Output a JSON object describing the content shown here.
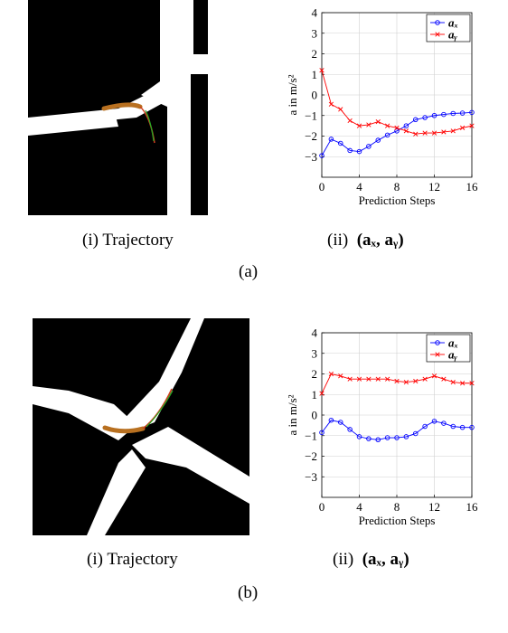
{
  "panels": [
    {
      "label": "(a)",
      "trajectory_caption": "(i)  Trajectory",
      "plot_caption_prefix": "(ii)",
      "plot_caption_math": "(aₓ, aᵧ)",
      "chart_data": {
        "type": "line",
        "xlabel": "Prediction Steps",
        "ylabel": "a in m/s²",
        "xlim": [
          0,
          16
        ],
        "ylim": [
          -4,
          4
        ],
        "xticks": [
          0,
          4,
          8,
          12,
          16
        ],
        "yticks": [
          -3,
          -2,
          -1,
          0,
          1,
          2,
          3,
          4
        ],
        "grid": true,
        "legend": "top-right",
        "x": [
          0,
          1,
          2,
          3,
          4,
          5,
          6,
          7,
          8,
          9,
          10,
          11,
          12,
          13,
          14,
          15,
          16
        ],
        "series": [
          {
            "name": "aₓ",
            "color": "#0000ff",
            "marker": "circle",
            "values": [
              -2.95,
              -2.15,
              -2.35,
              -2.7,
              -2.75,
              -2.5,
              -2.2,
              -1.95,
              -1.75,
              -1.5,
              -1.2,
              -1.1,
              -1.0,
              -0.95,
              -0.9,
              -0.88,
              -0.85
            ]
          },
          {
            "name": "aᵧ",
            "color": "#ff0000",
            "marker": "x",
            "values": [
              1.2,
              -0.45,
              -0.7,
              -1.25,
              -1.5,
              -1.45,
              -1.3,
              -1.5,
              -1.6,
              -1.75,
              -1.9,
              -1.85,
              -1.85,
              -1.8,
              -1.75,
              -1.6,
              -1.5
            ]
          }
        ]
      }
    },
    {
      "label": "(b)",
      "trajectory_caption": "(i)  Trajectory",
      "plot_caption_prefix": "(ii)",
      "plot_caption_math": "(aₓ, aᵧ)",
      "chart_data": {
        "type": "line",
        "xlabel": "Prediction Steps",
        "ylabel": "a in m/s²",
        "xlim": [
          0,
          16
        ],
        "ylim": [
          -4,
          4
        ],
        "xticks": [
          0,
          4,
          8,
          12,
          16
        ],
        "yticks": [
          -3,
          -2,
          -1,
          0,
          1,
          2,
          3,
          4
        ],
        "grid": true,
        "legend": "top-right",
        "x": [
          0,
          1,
          2,
          3,
          4,
          5,
          6,
          7,
          8,
          9,
          10,
          11,
          12,
          13,
          14,
          15,
          16
        ],
        "series": [
          {
            "name": "aₓ",
            "color": "#0000ff",
            "marker": "circle",
            "values": [
              -0.85,
              -0.25,
              -0.35,
              -0.7,
              -1.05,
              -1.15,
              -1.2,
              -1.1,
              -1.1,
              -1.05,
              -0.9,
              -0.55,
              -0.3,
              -0.4,
              -0.55,
              -0.6,
              -0.6
            ]
          },
          {
            "name": "aᵧ",
            "color": "#ff0000",
            "marker": "x",
            "values": [
              1.05,
              2.0,
              1.9,
              1.75,
              1.75,
              1.75,
              1.75,
              1.75,
              1.65,
              1.6,
              1.65,
              1.75,
              1.9,
              1.75,
              1.6,
              1.55,
              1.55
            ]
          }
        ]
      }
    }
  ]
}
